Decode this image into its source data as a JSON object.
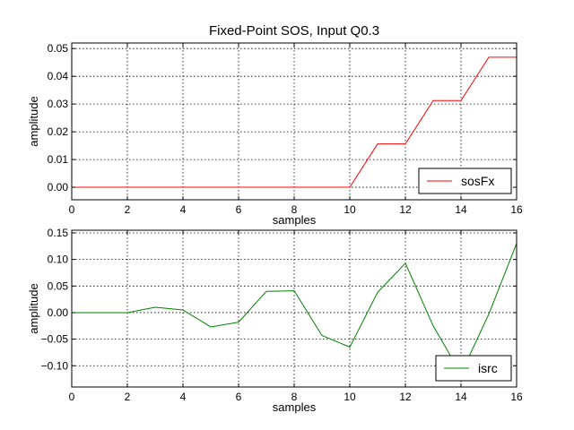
{
  "chart_data": [
    {
      "type": "line",
      "title": "Fixed-Point SOS, Input Q0.3",
      "xlabel": "samples",
      "ylabel": "amplitude",
      "xlim": [
        0,
        16
      ],
      "ylim": [
        -0.0045,
        0.052
      ],
      "xticks": [
        0,
        2,
        4,
        6,
        8,
        10,
        12,
        14,
        16
      ],
      "xtick_labels": [
        "0",
        "2",
        "4",
        "6",
        "8",
        "10",
        "12",
        "14",
        "16"
      ],
      "yticks": [
        0.0,
        0.01,
        0.02,
        0.03,
        0.04,
        0.05
      ],
      "ytick_labels": [
        "0.00",
        "0.01",
        "0.02",
        "0.03",
        "0.04",
        "0.05"
      ],
      "grid": true,
      "legend": "bottom-right",
      "series": [
        {
          "name": "sosFx",
          "color": "#ff0000",
          "x": [
            0,
            1,
            2,
            3,
            4,
            5,
            6,
            7,
            8,
            9,
            10,
            11,
            12,
            13,
            14,
            15,
            16
          ],
          "y": [
            0,
            0,
            0,
            0,
            0,
            0,
            0,
            0,
            0,
            0,
            0,
            0.015625,
            0.015625,
            0.03125,
            0.03125,
            0.046875,
            0.046875
          ]
        }
      ]
    },
    {
      "type": "line",
      "title": "",
      "xlabel": "samples",
      "ylabel": "amplitude",
      "xlim": [
        0,
        16
      ],
      "ylim": [
        -0.14,
        0.155
      ],
      "xticks": [
        0,
        2,
        4,
        6,
        8,
        10,
        12,
        14,
        16
      ],
      "xtick_labels": [
        "0",
        "2",
        "4",
        "6",
        "8",
        "10",
        "12",
        "14",
        "16"
      ],
      "yticks": [
        -0.1,
        -0.05,
        0.0,
        0.05,
        0.1,
        0.15
      ],
      "ytick_labels": [
        "−0.10",
        "−0.05",
        "0.00",
        "0.05",
        "0.10",
        "0.15"
      ],
      "grid": true,
      "legend": "bottom-right",
      "series": [
        {
          "name": "isrc",
          "color": "#008000",
          "x": [
            0,
            1,
            2,
            3,
            4,
            5,
            6,
            7,
            8,
            9,
            10,
            11,
            12,
            13,
            14,
            15,
            16
          ],
          "y": [
            0,
            0,
            0,
            0.01,
            0.005,
            -0.027,
            -0.018,
            0.04,
            0.041,
            -0.043,
            -0.065,
            0.038,
            0.093,
            -0.025,
            -0.115,
            -0.003,
            0.13
          ]
        }
      ]
    }
  ]
}
